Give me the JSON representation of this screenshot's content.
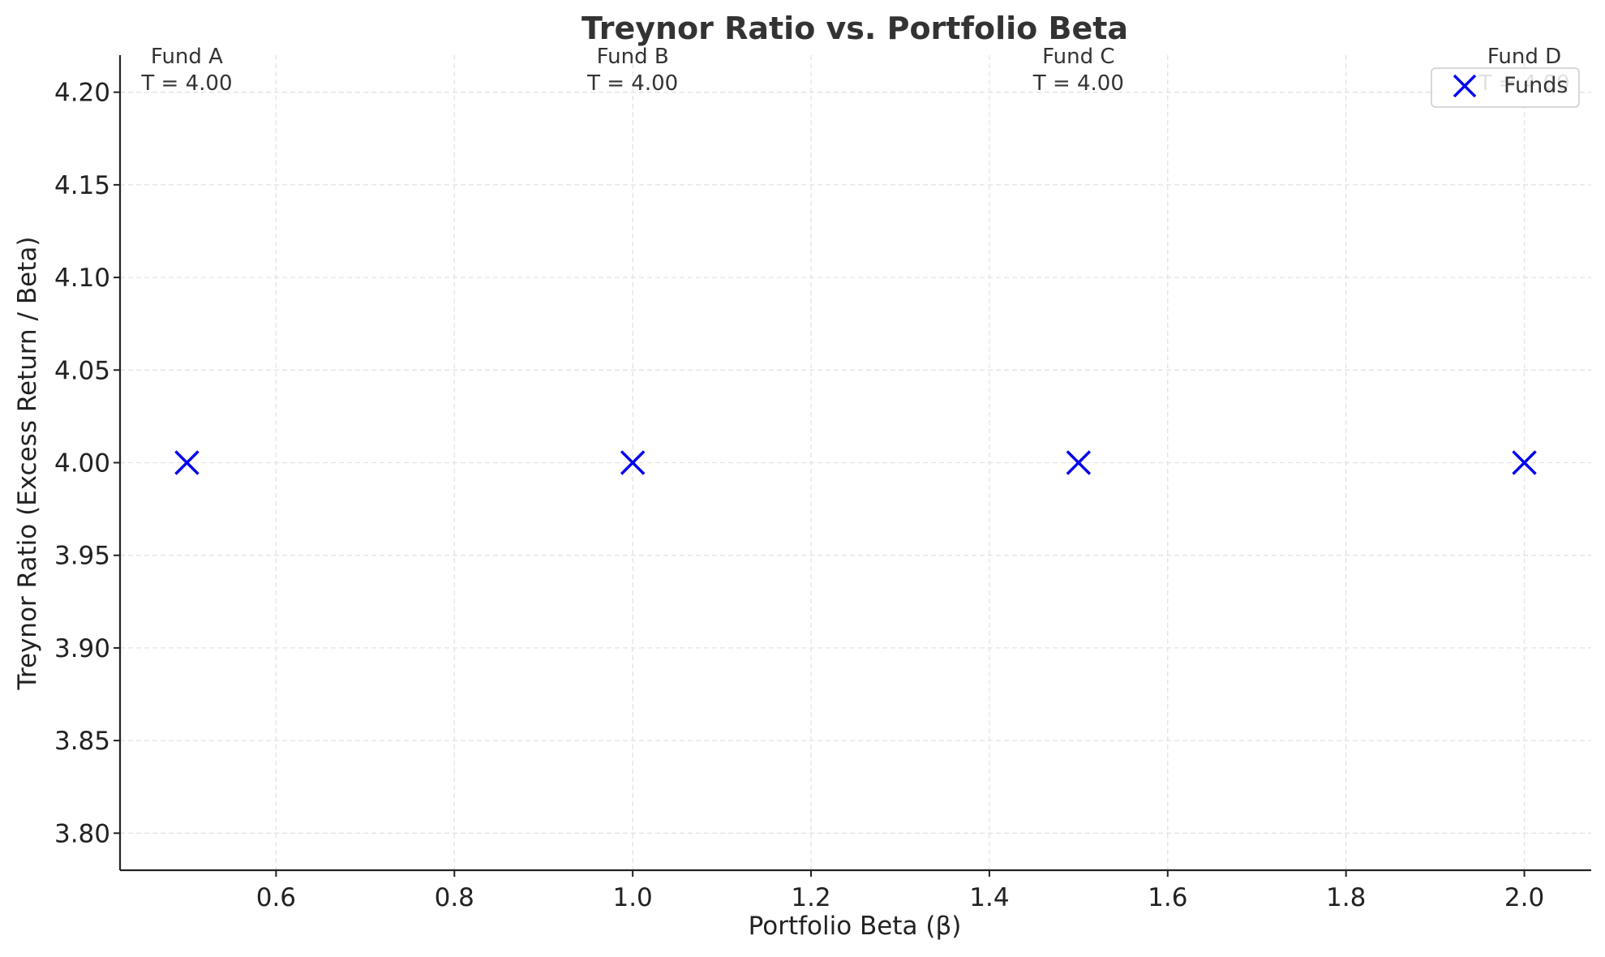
{
  "chart_data": {
    "type": "scatter",
    "title": "Treynor Ratio vs. Portfolio Beta",
    "xlabel": "Portfolio Beta (β)",
    "ylabel": "Treynor Ratio (Excess Return / Beta)",
    "xlim": [
      0.425,
      2.075
    ],
    "ylim": [
      3.78,
      4.22
    ],
    "xticks": [
      0.6,
      0.8,
      1.0,
      1.2,
      1.4,
      1.6,
      1.8,
      2.0
    ],
    "xtick_labels": [
      "0.6",
      "0.8",
      "1.0",
      "1.2",
      "1.4",
      "1.6",
      "1.8",
      "2.0"
    ],
    "yticks": [
      3.8,
      3.85,
      3.9,
      3.95,
      4.0,
      4.05,
      4.1,
      4.15,
      4.2
    ],
    "ytick_labels": [
      "3.80",
      "3.85",
      "3.90",
      "3.95",
      "4.00",
      "4.05",
      "4.10",
      "4.15",
      "4.20"
    ],
    "grid": true,
    "legend_position": "top-right",
    "series": [
      {
        "name": "Funds",
        "color": "#0000ee",
        "marker": "x",
        "points": [
          {
            "x": 0.5,
            "y": 4.0
          },
          {
            "x": 1.0,
            "y": 4.0
          },
          {
            "x": 1.5,
            "y": 4.0
          },
          {
            "x": 2.0,
            "y": 4.0
          }
        ]
      }
    ],
    "annotations": [
      {
        "x": 0.5,
        "name": "Fund A",
        "value": "T = 4.00"
      },
      {
        "x": 1.0,
        "name": "Fund B",
        "value": "T = 4.00"
      },
      {
        "x": 1.5,
        "name": "Fund C",
        "value": "T = 4.00"
      },
      {
        "x": 2.0,
        "name": "Fund D",
        "value": "T = 4.00"
      }
    ]
  }
}
